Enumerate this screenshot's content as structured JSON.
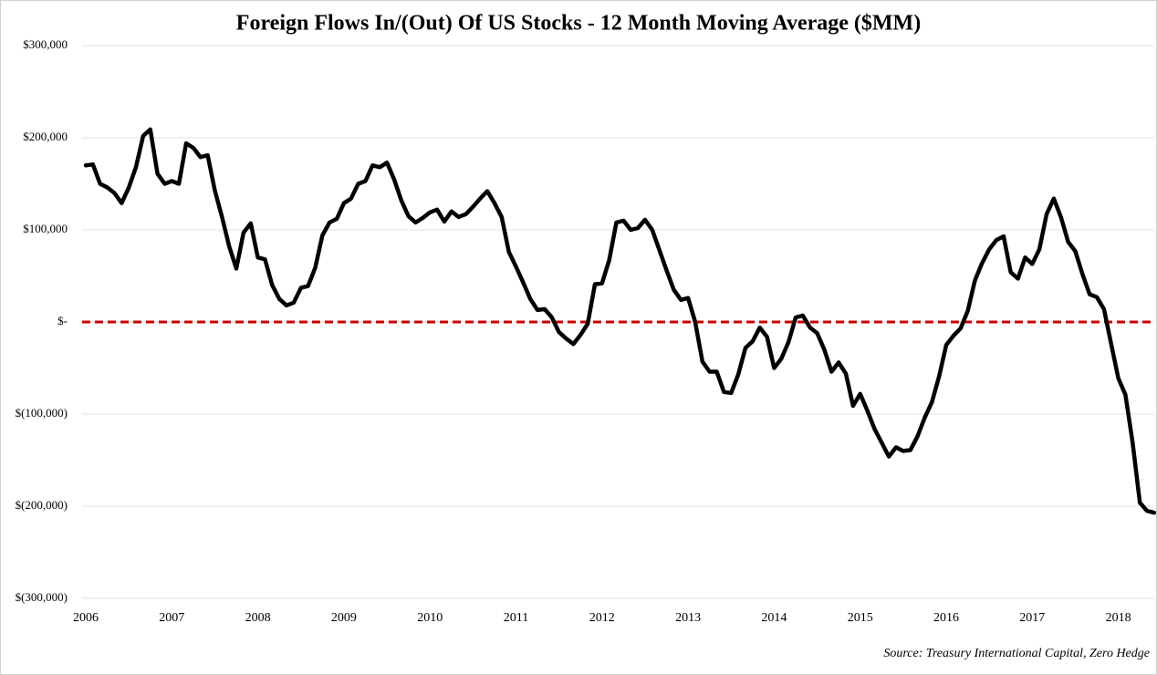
{
  "chart_data": {
    "type": "line",
    "title": "Foreign Flows In/(Out) Of US Stocks  - 12 Month Moving Average ($MM)",
    "source": "Source: Treasury International Capital, Zero Hedge",
    "x": [
      2006,
      2006.083,
      2006.167,
      2006.25,
      2006.333,
      2006.417,
      2006.5,
      2006.583,
      2006.667,
      2006.75,
      2006.833,
      2006.917,
      2007,
      2007.083,
      2007.167,
      2007.25,
      2007.333,
      2007.417,
      2007.5,
      2007.583,
      2007.667,
      2007.75,
      2007.833,
      2007.917,
      2008,
      2008.083,
      2008.167,
      2008.25,
      2008.333,
      2008.417,
      2008.5,
      2008.583,
      2008.667,
      2008.75,
      2008.833,
      2008.917,
      2009,
      2009.083,
      2009.167,
      2009.25,
      2009.333,
      2009.417,
      2009.5,
      2009.583,
      2009.667,
      2009.75,
      2009.833,
      2009.917,
      2010,
      2010.083,
      2010.167,
      2010.25,
      2010.333,
      2010.417,
      2010.5,
      2010.583,
      2010.667,
      2010.75,
      2010.833,
      2010.917,
      2011,
      2011.083,
      2011.167,
      2011.25,
      2011.333,
      2011.417,
      2011.5,
      2011.583,
      2011.667,
      2011.75,
      2011.833,
      2011.917,
      2012,
      2012.083,
      2012.167,
      2012.25,
      2012.333,
      2012.417,
      2012.5,
      2012.583,
      2012.667,
      2012.75,
      2012.833,
      2012.917,
      2013,
      2013.083,
      2013.167,
      2013.25,
      2013.333,
      2013.417,
      2013.5,
      2013.583,
      2013.667,
      2013.75,
      2013.833,
      2013.917,
      2014,
      2014.083,
      2014.167,
      2014.25,
      2014.333,
      2014.417,
      2014.5,
      2014.583,
      2014.667,
      2014.75,
      2014.833,
      2014.917,
      2015,
      2015.083,
      2015.167,
      2015.25,
      2015.333,
      2015.417,
      2015.5,
      2015.583,
      2015.667,
      2015.75,
      2015.833,
      2015.917,
      2016,
      2016.083,
      2016.167,
      2016.25,
      2016.333,
      2016.417,
      2016.5,
      2016.583,
      2016.667,
      2016.75,
      2016.833,
      2016.917,
      2017,
      2017.083,
      2017.167,
      2017.25,
      2017.333,
      2017.417,
      2017.5,
      2017.583,
      2017.667,
      2017.75,
      2017.833,
      2017.917,
      2018,
      2018.083,
      2018.167,
      2018.25,
      2018.333,
      2018.417
    ],
    "values": [
      170000,
      171000,
      150000,
      146000,
      140000,
      129000,
      146000,
      168000,
      202000,
      209000,
      161000,
      150000,
      153000,
      150000,
      194000,
      189000,
      179000,
      181000,
      143000,
      114000,
      82000,
      58000,
      97000,
      107000,
      70000,
      68000,
      40000,
      25000,
      18000,
      21000,
      37000,
      39000,
      59000,
      94000,
      108000,
      112000,
      129000,
      134000,
      150000,
      153000,
      170000,
      168000,
      173000,
      155000,
      132000,
      115000,
      108000,
      113000,
      119000,
      122000,
      109000,
      120000,
      114000,
      117000,
      125000,
      134000,
      142000,
      129000,
      114000,
      76000,
      60000,
      43000,
      25000,
      13000,
      14000,
      5000,
      -11000,
      -18000,
      -24000,
      -14000,
      -2000,
      41000,
      42000,
      67000,
      108000,
      110000,
      100000,
      102000,
      111000,
      100000,
      78000,
      56000,
      35000,
      24000,
      26000,
      0,
      -43000,
      -54000,
      -54000,
      -76000,
      -77000,
      -57000,
      -28000,
      -21000,
      -6000,
      -16000,
      -50000,
      -40000,
      -22000,
      5000,
      7000,
      -6000,
      -12000,
      -30000,
      -54000,
      -44000,
      -56000,
      -91000,
      -78000,
      -96000,
      -116000,
      -131000,
      -146000,
      -136000,
      -140000,
      -139000,
      -124000,
      -104000,
      -87000,
      -59000,
      -25000,
      -15000,
      -7000,
      12000,
      45000,
      64000,
      79000,
      89000,
      93000,
      54000,
      47000,
      70000,
      63000,
      79000,
      117000,
      134000,
      114000,
      87000,
      77000,
      52000,
      30000,
      27000,
      14000,
      -24000,
      -61000,
      -79000,
      -131000,
      -196000,
      -205000,
      -207000
    ],
    "color": "#000000",
    "xlim": [
      2006,
      2018.45
    ],
    "xticks": [
      2006,
      2007,
      2008,
      2009,
      2010,
      2011,
      2012,
      2013,
      2014,
      2015,
      2016,
      2017,
      2018
    ],
    "ylim": [
      -300000,
      300000
    ],
    "yticks": [
      {
        "value": -300000,
        "label": "$(300,000)"
      },
      {
        "value": -200000,
        "label": "$(200,000)"
      },
      {
        "value": -100000,
        "label": "$(100,000)"
      },
      {
        "value": 0,
        "label": "$-"
      },
      {
        "value": 100000,
        "label": "$100,000"
      },
      {
        "value": 200000,
        "label": "$200,000"
      },
      {
        "value": 300000,
        "label": "$300,000"
      }
    ],
    "grid": true,
    "reference_line": {
      "value": 0,
      "color": "#cc0000"
    }
  }
}
